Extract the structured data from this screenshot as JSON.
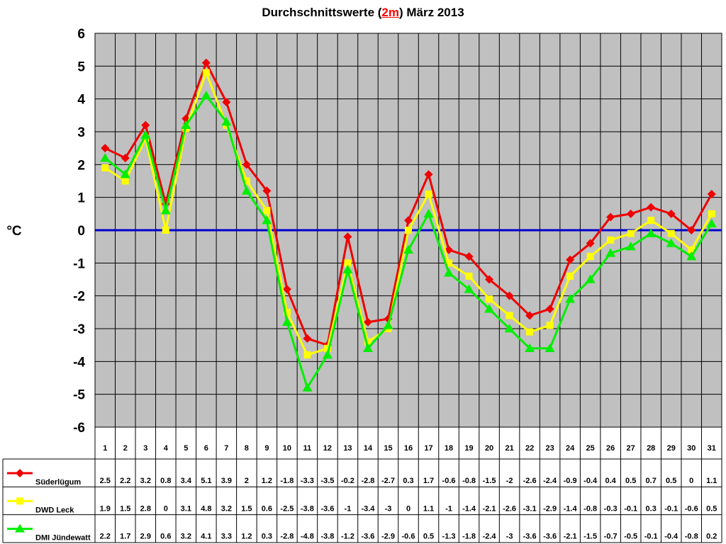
{
  "chart_data": {
    "type": "line",
    "title": {
      "before": "Durchschnittswerte (",
      "highlight": "2m",
      "after": ") März 2013"
    },
    "ylabel": "°C",
    "xlabel": "",
    "ylim": [
      -6,
      6
    ],
    "ytick_step": 1,
    "grid": true,
    "legend": "data-table-bottom-left",
    "plot_background": "#c0c0c0",
    "zero_line_color": "#0000cc",
    "x": [
      1,
      2,
      3,
      4,
      5,
      6,
      7,
      8,
      9,
      10,
      11,
      12,
      13,
      14,
      15,
      16,
      17,
      18,
      19,
      20,
      21,
      22,
      23,
      24,
      25,
      26,
      27,
      28,
      29,
      30,
      31
    ],
    "series": [
      {
        "name": "Süderlügum",
        "color": "#ee0000",
        "marker": "diamond",
        "values": [
          2.5,
          2.2,
          3.2,
          0.8,
          3.4,
          5.1,
          3.9,
          2,
          1.2,
          -1.8,
          -3.3,
          -3.5,
          -0.2,
          -2.8,
          -2.7,
          0.3,
          1.7,
          -0.6,
          -0.8,
          -1.5,
          -2,
          -2.6,
          -2.4,
          -0.9,
          -0.4,
          0.4,
          0.5,
          0.7,
          0.5,
          0,
          1.1
        ],
        "labels": [
          "2.5",
          "2.2",
          "3.2",
          "0.8",
          "3.4",
          "5.1",
          "3.9",
          "2",
          "1.2",
          "-1.8",
          "-3.3",
          "-3.5",
          "-0.2",
          "-2.8",
          "-2.7",
          "0.3",
          "1.7",
          "-0.6",
          "-0.8",
          "-1.5",
          "-2",
          "-2.6",
          "-2.4",
          "-0.9",
          "-0.4",
          "0.4",
          "0.5",
          "0.7",
          "0.5",
          "0",
          "1.1"
        ]
      },
      {
        "name": "DWD Leck",
        "color": "#ffff00",
        "marker": "square",
        "values": [
          1.9,
          1.5,
          2.8,
          0,
          3.1,
          4.8,
          3.2,
          1.5,
          0.6,
          -2.5,
          -3.8,
          -3.6,
          -1,
          -3.4,
          -3,
          0,
          1.1,
          -1,
          -1.4,
          -2.1,
          -2.6,
          -3.1,
          -2.9,
          -1.4,
          -0.8,
          -0.3,
          -0.1,
          0.3,
          -0.1,
          -0.6,
          0.5
        ],
        "labels": [
          "1.9",
          "1.5",
          "2.8",
          "0",
          "3.1",
          "4.8",
          "3.2",
          "1.5",
          "0.6",
          "-2.5",
          "-3.8",
          "-3.6",
          "-1",
          "-3.4",
          "-3",
          "0",
          "1.1",
          "-1",
          "-1.4",
          "-2.1",
          "-2.6",
          "-3.1",
          "-2.9",
          "-1.4",
          "-0.8",
          "-0.3",
          "-0.1",
          "0.3",
          "-0.1",
          "-0.6",
          "0.5"
        ]
      },
      {
        "name": "DMI Jündewatt",
        "color": "#00ee00",
        "marker": "triangle",
        "values": [
          2.2,
          1.7,
          2.9,
          0.6,
          3.2,
          4.1,
          3.3,
          1.2,
          0.3,
          -2.8,
          -4.8,
          -3.8,
          -1.2,
          -3.6,
          -2.9,
          -0.6,
          0.5,
          -1.3,
          -1.8,
          -2.4,
          -3,
          -3.6,
          -3.6,
          -2.1,
          -1.5,
          -0.7,
          -0.5,
          -0.1,
          -0.4,
          -0.8,
          0.2
        ],
        "labels": [
          "2.2",
          "1.7",
          "2.9",
          "0.6",
          "3.2",
          "4.1",
          "3.3",
          "1.2",
          "0.3",
          "-2.8",
          "-4.8",
          "-3.8",
          "-1.2",
          "-3.6",
          "-2.9",
          "-0.6",
          "0.5",
          "-1.3",
          "-1.8",
          "-2.4",
          "-3",
          "-3.6",
          "-3.6",
          "-2.1",
          "-1.5",
          "-0.7",
          "-0.5",
          "-0.1",
          "-0.4",
          "-0.8",
          "0.2"
        ]
      }
    ]
  }
}
